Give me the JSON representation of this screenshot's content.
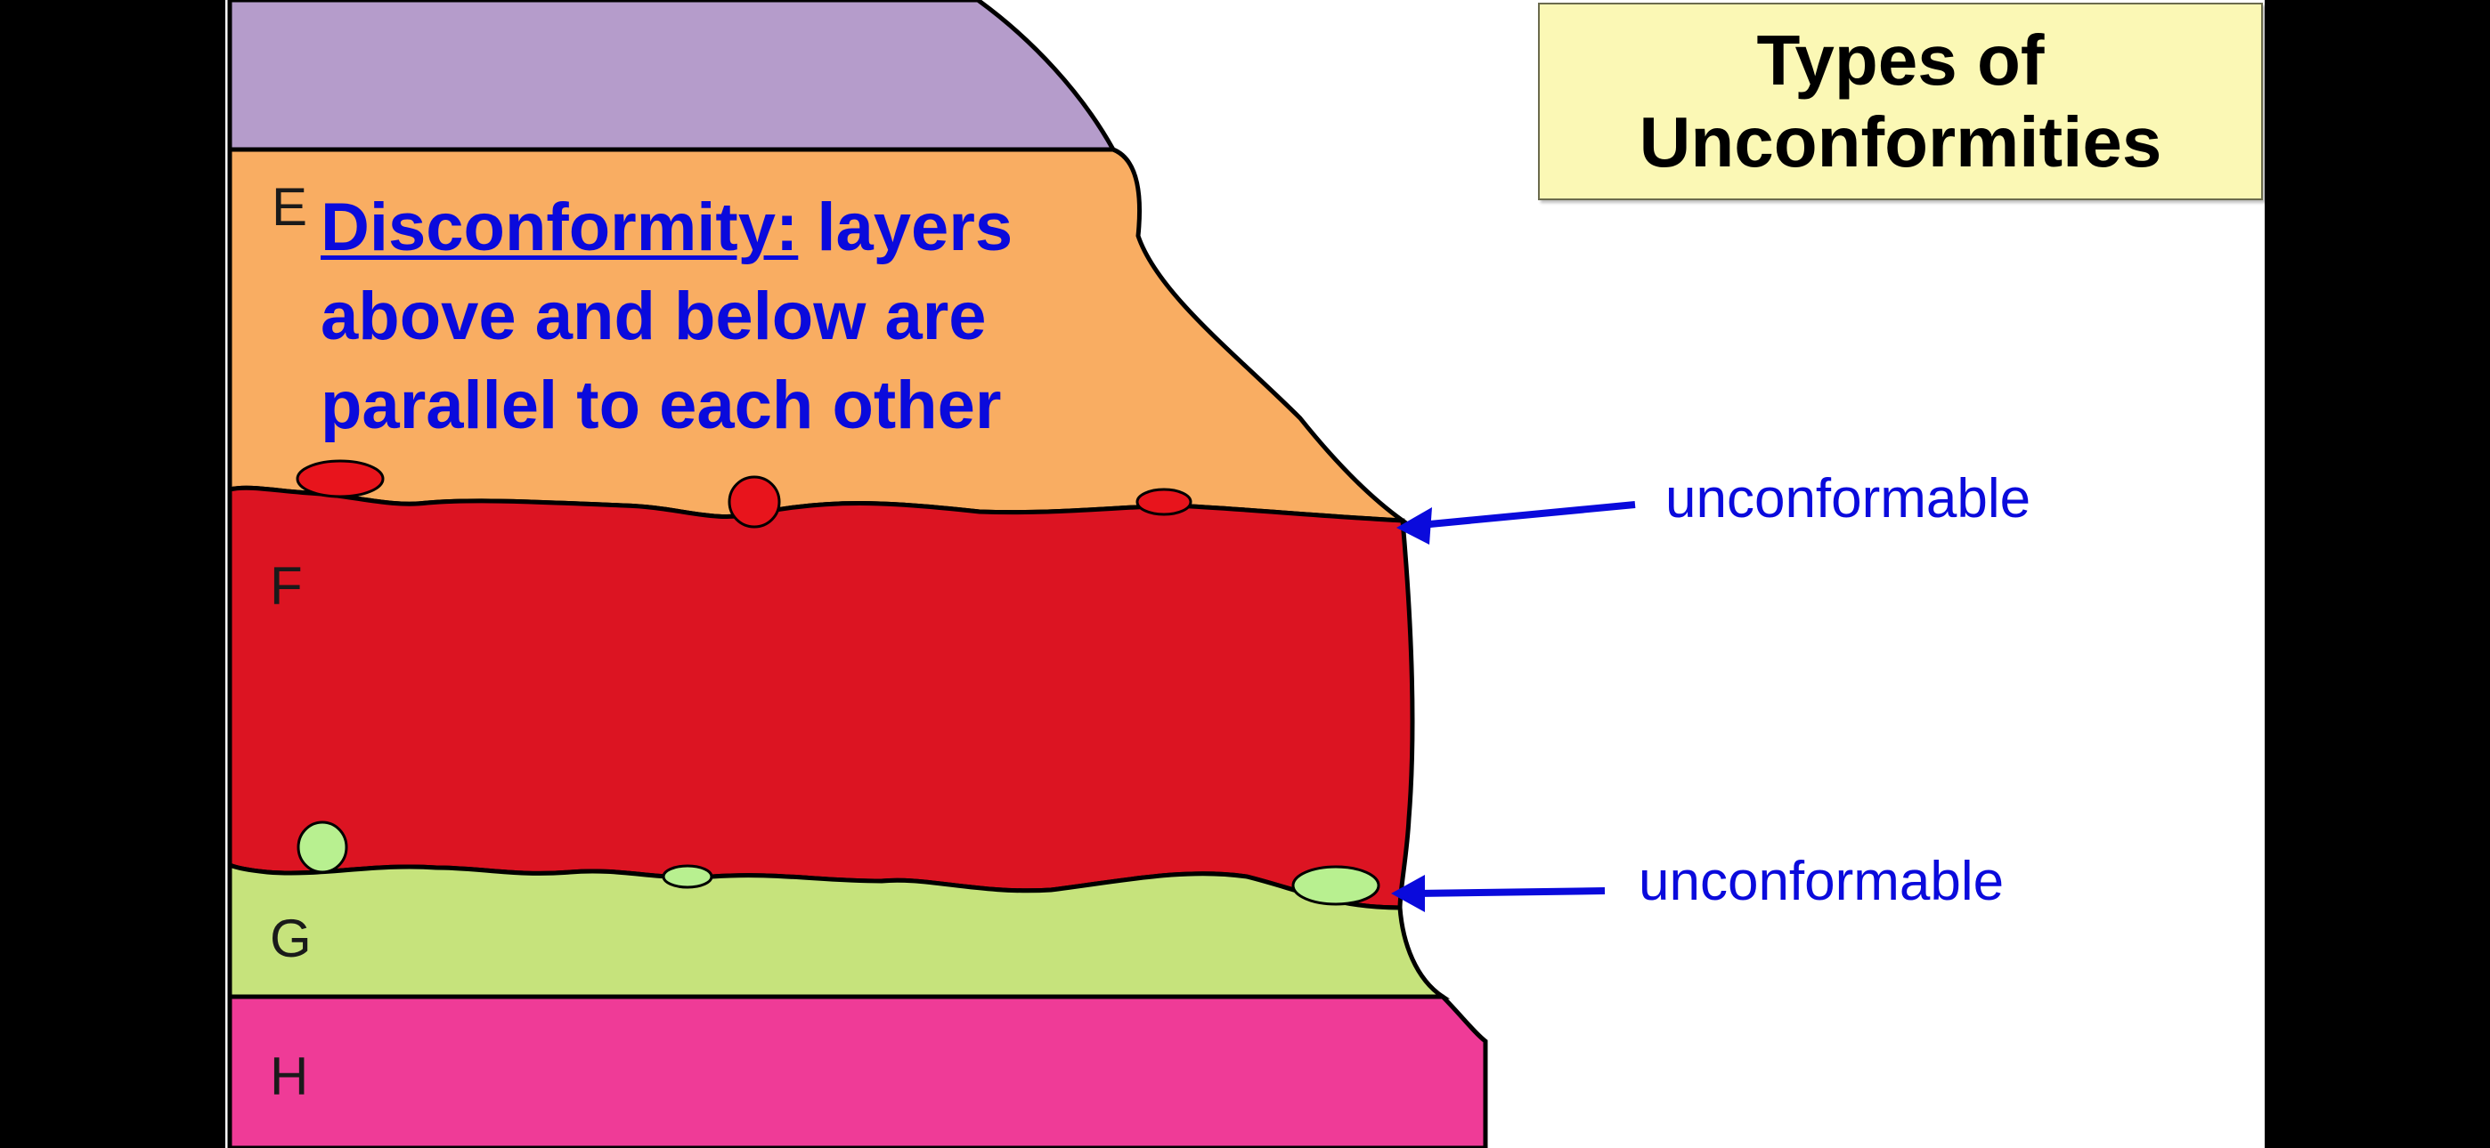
{
  "title": {
    "line1": "Types of",
    "line2": "Unconformities"
  },
  "layers": [
    {
      "id": "top",
      "label": "",
      "color": "#b59ccb"
    },
    {
      "id": "E",
      "label": "E",
      "color": "#f9ad62"
    },
    {
      "id": "F",
      "label": "F",
      "color": "#dc1422"
    },
    {
      "id": "G",
      "label": "G",
      "color": "#c6e37c"
    },
    {
      "id": "H",
      "label": "H",
      "color": "#ef3b97"
    }
  ],
  "description": {
    "term": "Disconformity:",
    "line1_rest": " layers",
    "line2": "above and below are",
    "line3": "parallel to each other"
  },
  "annotations": [
    {
      "text": "unconformable"
    },
    {
      "text": "unconformable"
    }
  ],
  "colors": {
    "accent_blue": "#0a0adc",
    "pebble_red": "#e8141c",
    "pebble_green": "#b8f090"
  }
}
